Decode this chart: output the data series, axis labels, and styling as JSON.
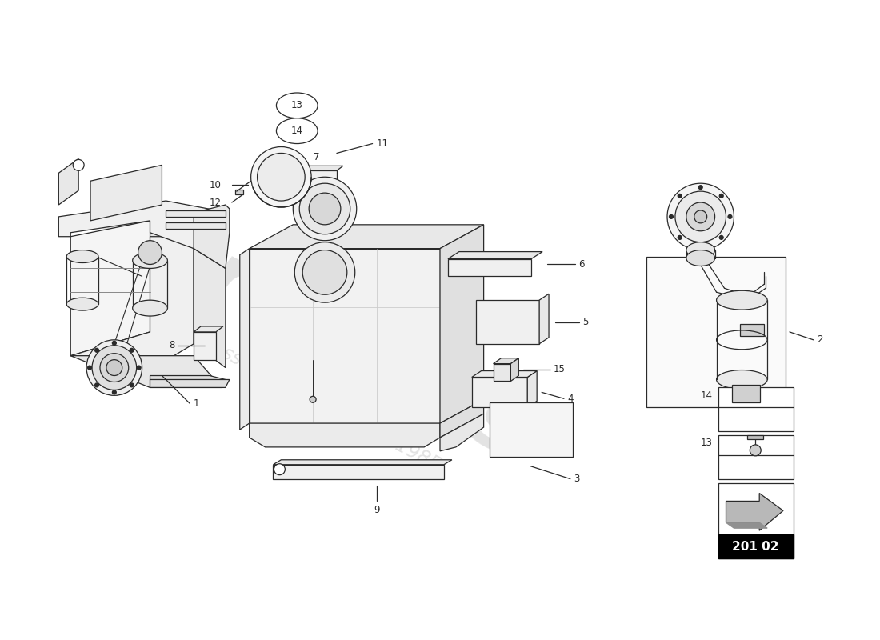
{
  "bg": "#ffffff",
  "lc": "#2a2a2a",
  "lw": 0.9,
  "wm_color": "#c8c8c8",
  "wm_alpha": 0.5,
  "part_number": "201 02",
  "label_fs": 8.5,
  "parts": [
    1,
    2,
    3,
    4,
    5,
    6,
    7,
    8,
    9,
    10,
    11,
    12,
    13,
    14,
    15
  ]
}
